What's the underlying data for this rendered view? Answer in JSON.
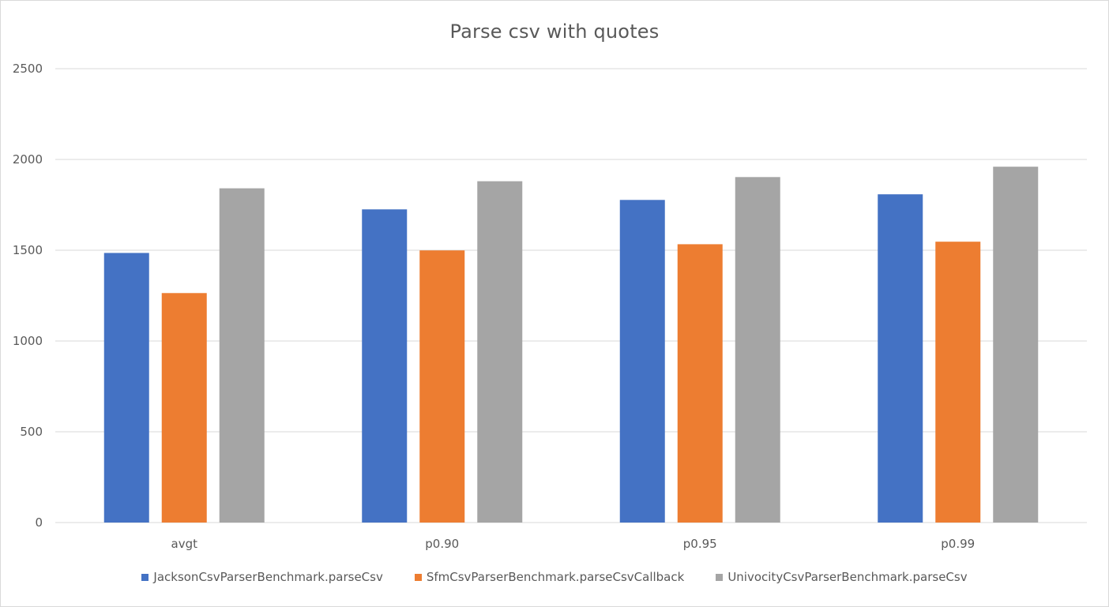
{
  "colors": {
    "series_0": "#4472c4",
    "series_1": "#ed7d31",
    "series_2": "#a5a5a5",
    "gridline": "#d9d9d9",
    "axis_text": "#595959"
  },
  "chart_data": {
    "type": "bar",
    "title": "Parse csv with quotes",
    "xlabel": "",
    "ylabel": "",
    "ylim": [
      0,
      2500
    ],
    "yticks": [
      0,
      500,
      1000,
      1500,
      2000,
      2500
    ],
    "grid": true,
    "legend_position": "bottom",
    "categories": [
      "avgt",
      "p0.90",
      "p0.95",
      "p0.99"
    ],
    "series": [
      {
        "name": "JacksonCsvParserBenchmark.parseCsv",
        "values": [
          1485,
          1725,
          1777,
          1808
        ]
      },
      {
        "name": "SfmCsvParserBenchmark.parseCsvCallback",
        "values": [
          1264,
          1499,
          1533,
          1547
        ]
      },
      {
        "name": "UnivocityCsvParserBenchmark.parseCsv",
        "values": [
          1841,
          1880,
          1903,
          1960
        ]
      }
    ]
  }
}
